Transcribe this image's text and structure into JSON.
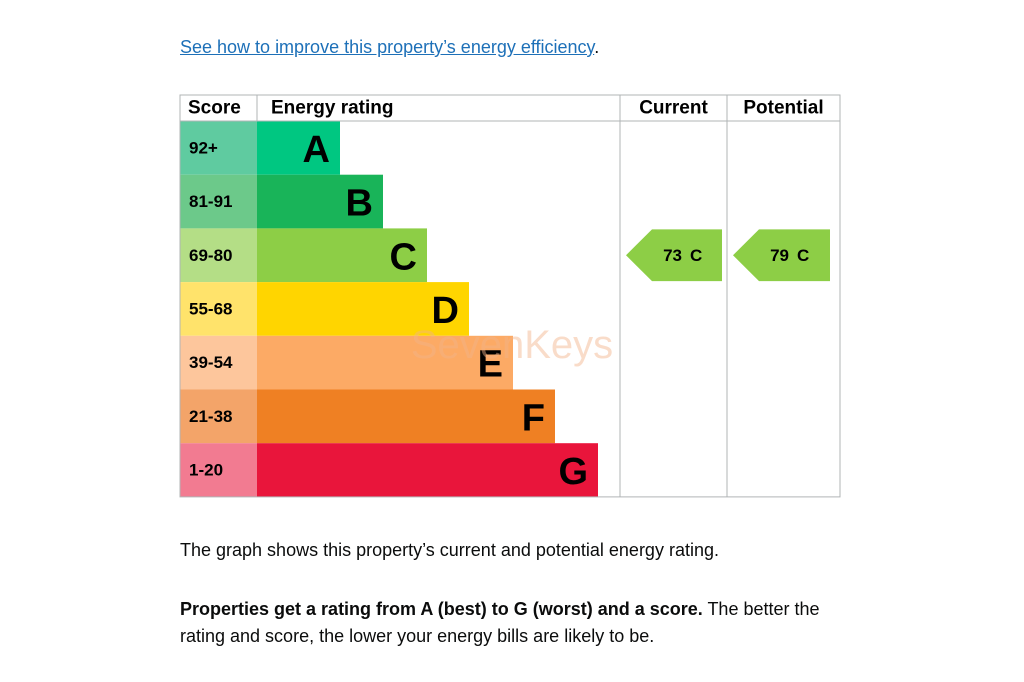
{
  "link": {
    "text": "See how to improve this property’s energy efficiency",
    "suffix": "."
  },
  "table": {
    "headers": [
      "Score",
      "Energy rating",
      "Current",
      "Potential"
    ],
    "bands": [
      {
        "score": "92+",
        "letter": "A"
      },
      {
        "score": "81-91",
        "letter": "B"
      },
      {
        "score": "69-80",
        "letter": "C"
      },
      {
        "score": "55-68",
        "letter": "D"
      },
      {
        "score": "39-54",
        "letter": "E"
      },
      {
        "score": "21-38",
        "letter": "F"
      },
      {
        "score": "1-20",
        "letter": "G"
      }
    ],
    "current": {
      "score": 73,
      "rating": "C"
    },
    "potential": {
      "score": 79,
      "rating": "C"
    }
  },
  "watermark": "SevenKeys",
  "paragraphs": [
    {
      "text": "The graph shows this property’s current and potential energy rating."
    },
    {
      "bold": "Properties get a rating from A (best) to G (worst) and a score.",
      "text": "The better the rating and score, the lower your energy bills are likely to be."
    }
  ]
}
